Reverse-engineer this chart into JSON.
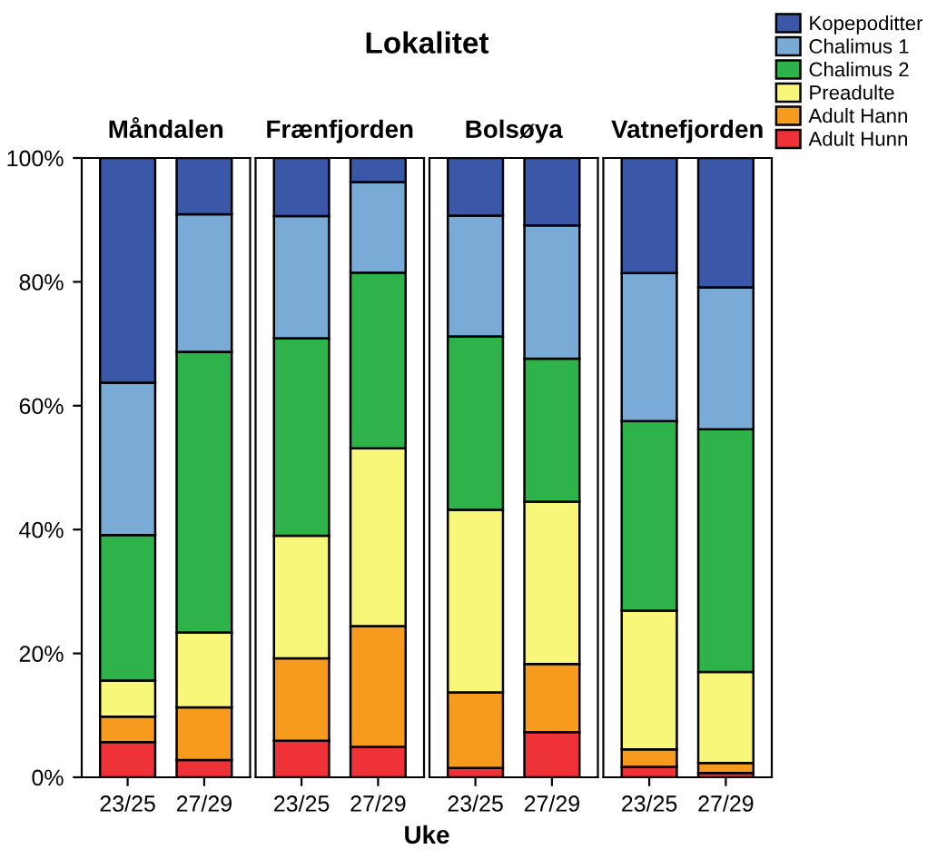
{
  "chart_data": [
    {
      "type": "bar",
      "stacked": true,
      "title": "Måndalen",
      "annotations": [
        "Lokalitet",
        "Uke"
      ],
      "categories": [
        "23/25",
        "27/29"
      ],
      "ylim": [
        0,
        100
      ],
      "yticks": [
        {
          "value": 0,
          "label": "0%"
        },
        {
          "value": 20,
          "label": "20%"
        },
        {
          "value": 40,
          "label": "40%"
        },
        {
          "value": 60,
          "label": "60%"
        },
        {
          "value": 80,
          "label": "80%"
        },
        {
          "value": 100,
          "label": "100%"
        }
      ],
      "series": [
        {
          "color": "#ef3238",
          "values": [
            5.7,
            2.8
          ]
        },
        {
          "color": "#f79b1f",
          "values": [
            4.1,
            8.5
          ]
        },
        {
          "color": "#f9f77a",
          "values": [
            5.8,
            12.1
          ]
        },
        {
          "color": "#2db34a",
          "values": [
            23.5,
            45.3
          ]
        },
        {
          "color": "#7aaad6",
          "values": [
            24.6,
            22.2
          ]
        },
        {
          "color": "#3a57a8",
          "values": [
            36.3,
            9.1
          ]
        }
      ]
    },
    {
      "type": "bar",
      "stacked": true,
      "title": "Frænfjorden",
      "categories": [
        "23/25",
        "27/29"
      ],
      "ylim": [
        0,
        100
      ],
      "tick_labels": "x",
      "series": [
        {
          "color": "#ef3238",
          "values": [
            5.9,
            4.9
          ]
        },
        {
          "color": "#f79b1f",
          "values": [
            13.3,
            19.5
          ]
        },
        {
          "color": "#f9f77a",
          "values": [
            19.8,
            28.7
          ]
        },
        {
          "color": "#2db34a",
          "values": [
            31.9,
            28.4
          ]
        },
        {
          "color": "#7aaad6",
          "values": [
            19.7,
            14.6
          ]
        },
        {
          "color": "#3a57a8",
          "values": [
            9.4,
            3.9
          ]
        }
      ]
    },
    {
      "type": "bar",
      "stacked": true,
      "title": "Bolsøya",
      "categories": [
        "23/25",
        "27/29"
      ],
      "ylim": [
        0,
        100
      ],
      "tick_labels": "x",
      "series": [
        {
          "color": "#ef3238",
          "values": [
            1.5,
            7.3
          ]
        },
        {
          "color": "#f79b1f",
          "values": [
            12.2,
            11.0
          ]
        },
        {
          "color": "#f9f77a",
          "values": [
            29.5,
            26.2
          ]
        },
        {
          "color": "#2db34a",
          "values": [
            28.0,
            23.1
          ]
        },
        {
          "color": "#7aaad6",
          "values": [
            19.5,
            21.5
          ]
        },
        {
          "color": "#3a57a8",
          "values": [
            9.3,
            10.9
          ]
        }
      ]
    },
    {
      "type": "bar",
      "stacked": true,
      "title": "Vatnefjorden",
      "categories": [
        "23/25",
        "27/29"
      ],
      "ylim": [
        0,
        100
      ],
      "tick_labels": "x",
      "legend": "top right",
      "series": [
        {
          "name": "Adult Hunn",
          "color": "#ef3238",
          "values": [
            1.7,
            0.7
          ]
        },
        {
          "name": "Adult Hann",
          "color": "#f79b1f",
          "values": [
            2.8,
            1.6
          ]
        },
        {
          "name": "Preadulte",
          "color": "#f9f77a",
          "values": [
            22.4,
            14.7
          ]
        },
        {
          "name": "Chalimus 2",
          "color": "#2db34a",
          "values": [
            30.6,
            39.2
          ]
        },
        {
          "name": "Chalimus 1",
          "color": "#7aaad6",
          "values": [
            23.9,
            22.9
          ]
        },
        {
          "name": "Kopepoditter",
          "color": "#3a57a8",
          "values": [
            18.6,
            20.9
          ]
        }
      ]
    }
  ]
}
